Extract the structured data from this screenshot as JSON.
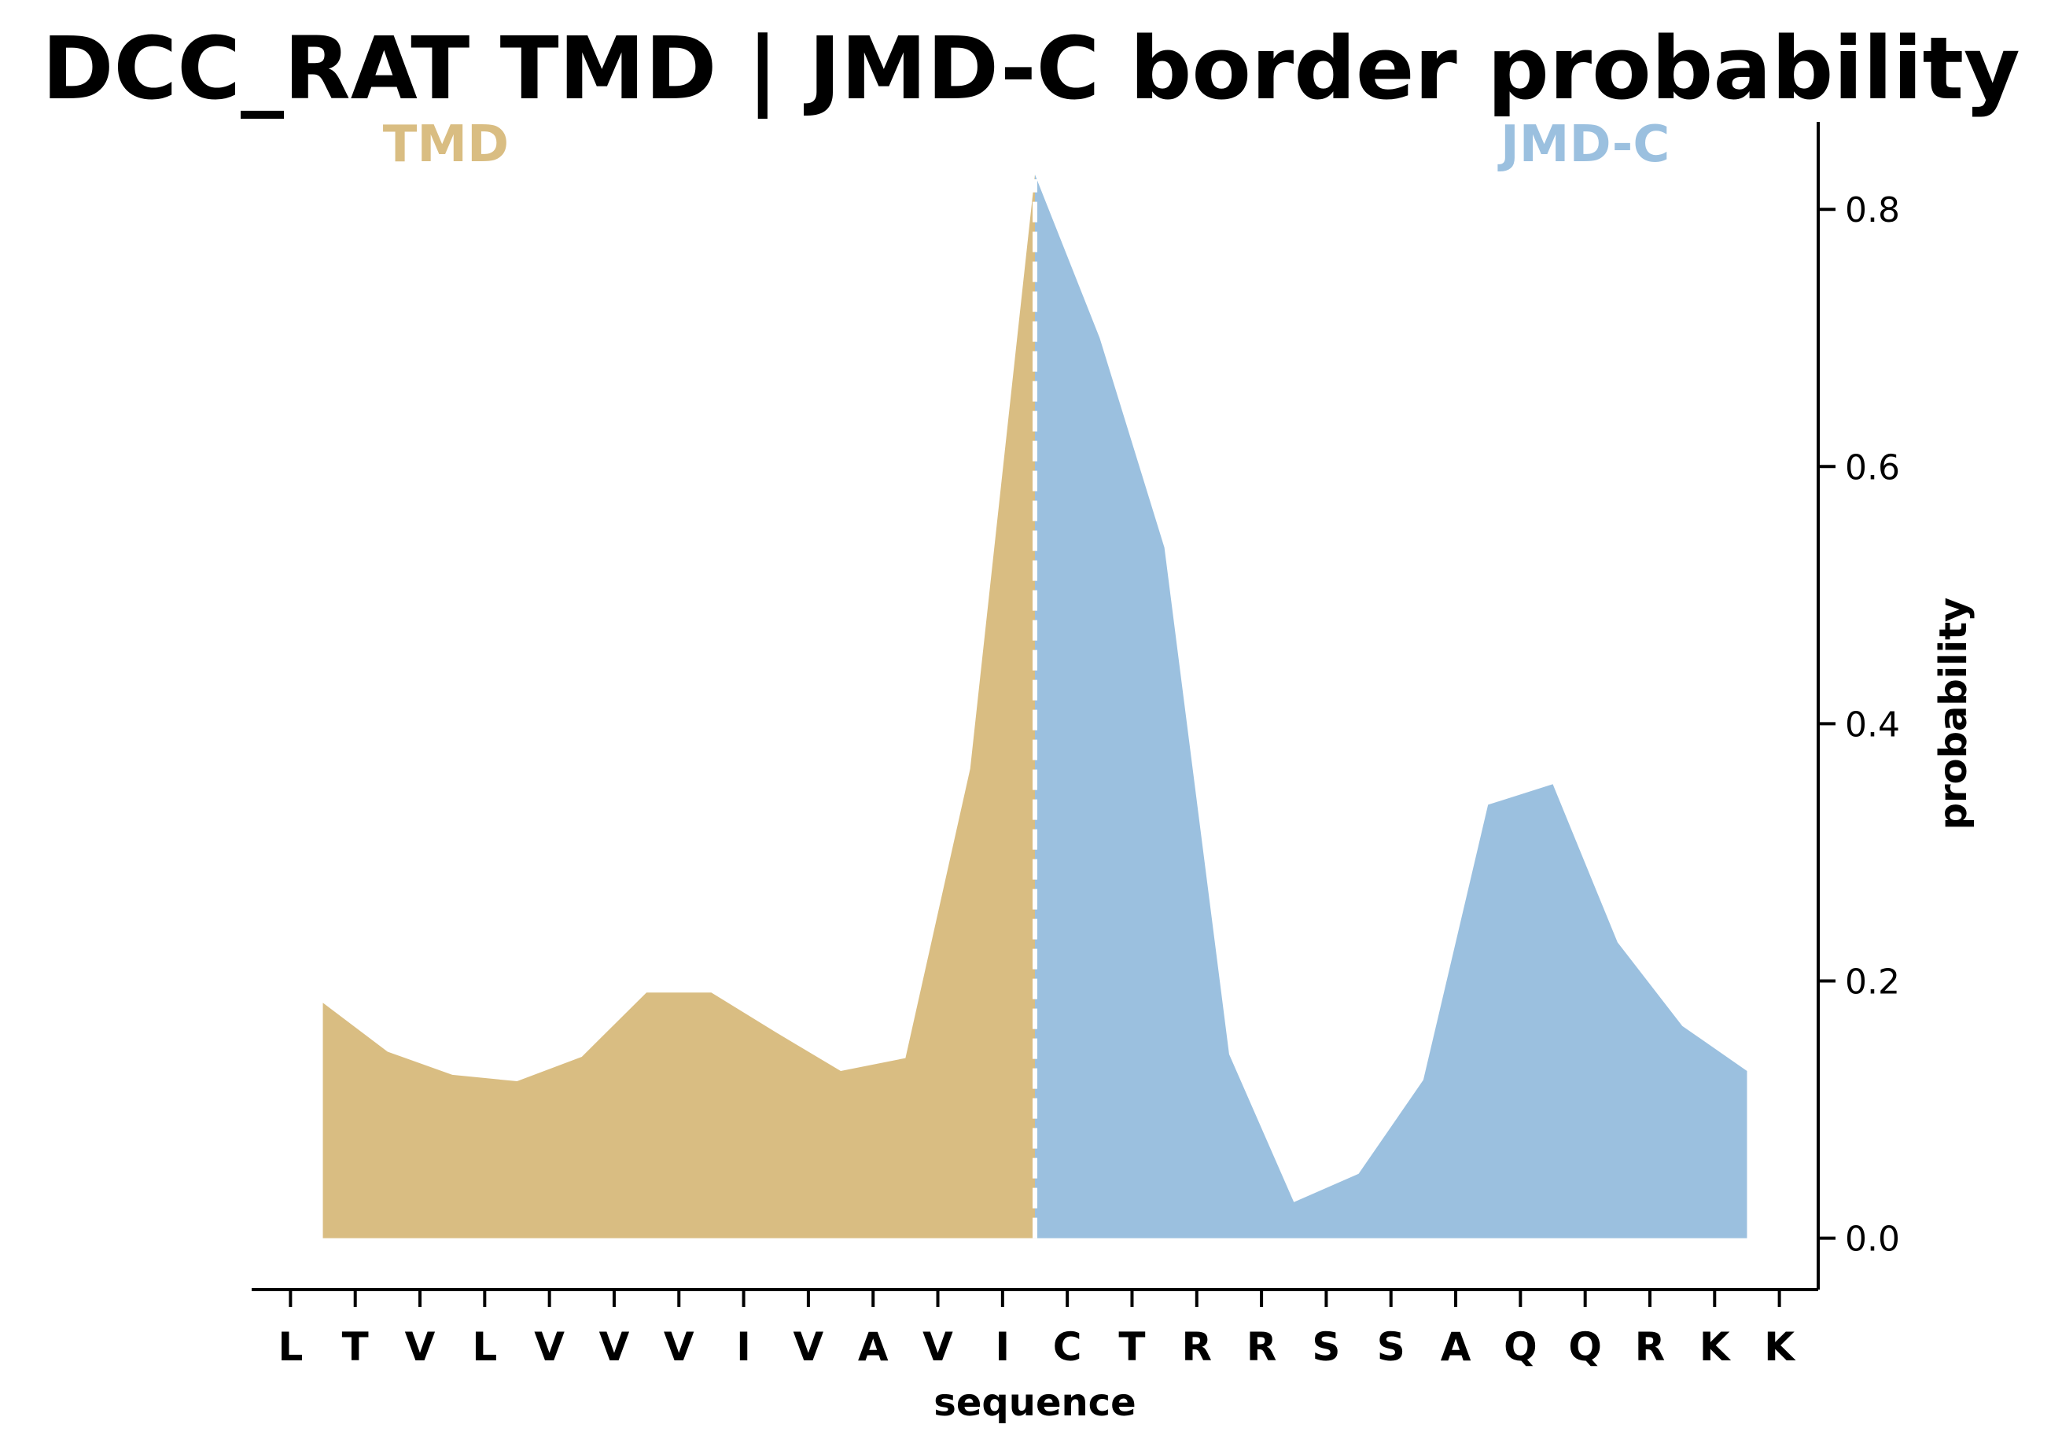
{
  "chart_data": {
    "type": "area",
    "title": "DCC_RAT TMD | JMD-C border probability",
    "xlabel": "sequence",
    "ylabel": "probability",
    "categories": [
      "L",
      "T",
      "V",
      "L",
      "V",
      "V",
      "V",
      "I",
      "V",
      "A",
      "V",
      "I",
      "C",
      "T",
      "R",
      "R",
      "S",
      "S",
      "A",
      "Q",
      "Q",
      "R",
      "K",
      "K"
    ],
    "regions": [
      {
        "name": "TMD",
        "color": "#d9bd82"
      },
      {
        "name": "JMD-C",
        "color": "#9bc0df"
      }
    ],
    "boundary_x": 11.5,
    "points": [
      {
        "x": 0.5,
        "y": 0.183
      },
      {
        "x": 1.5,
        "y": 0.145
      },
      {
        "x": 2.5,
        "y": 0.127
      },
      {
        "x": 3.5,
        "y": 0.122
      },
      {
        "x": 4.5,
        "y": 0.141
      },
      {
        "x": 5.5,
        "y": 0.191
      },
      {
        "x": 6.5,
        "y": 0.191
      },
      {
        "x": 7.5,
        "y": 0.16
      },
      {
        "x": 8.5,
        "y": 0.13
      },
      {
        "x": 9.5,
        "y": 0.14
      },
      {
        "x": 10.5,
        "y": 0.365
      },
      {
        "x": 11.5,
        "y": 0.827
      },
      {
        "x": 12.5,
        "y": 0.7
      },
      {
        "x": 13.5,
        "y": 0.537
      },
      {
        "x": 14.5,
        "y": 0.143
      },
      {
        "x": 15.5,
        "y": 0.028
      },
      {
        "x": 16.5,
        "y": 0.05
      },
      {
        "x": 17.5,
        "y": 0.123
      },
      {
        "x": 18.5,
        "y": 0.337
      },
      {
        "x": 19.5,
        "y": 0.353
      },
      {
        "x": 20.5,
        "y": 0.23
      },
      {
        "x": 21.5,
        "y": 0.165
      },
      {
        "x": 22.5,
        "y": 0.13
      }
    ],
    "yticks": [
      "0.0",
      "0.2",
      "0.4",
      "0.6",
      "0.8"
    ],
    "yaxis_side": "right",
    "ylim": [
      -0.04,
      0.868
    ],
    "xlim": [
      -0.6,
      23.6
    ],
    "grid": false,
    "boundary_line_color": "#ffffff"
  }
}
